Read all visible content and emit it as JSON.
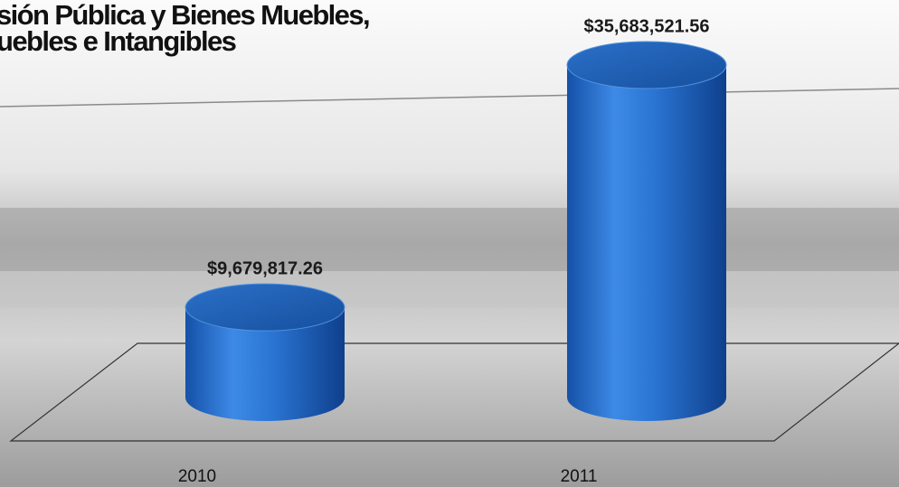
{
  "chart_data": {
    "type": "cylinder",
    "title": [
      "sión Pública y Bienes Muebles,",
      "uebles e Intangibles"
    ],
    "categories": [
      "2010",
      "2011"
    ],
    "values": [
      9679817.26,
      35683521.56
    ],
    "value_labels": [
      "$9,679,817.26",
      "$35,683,521.56"
    ],
    "color": "#1f68c4"
  }
}
